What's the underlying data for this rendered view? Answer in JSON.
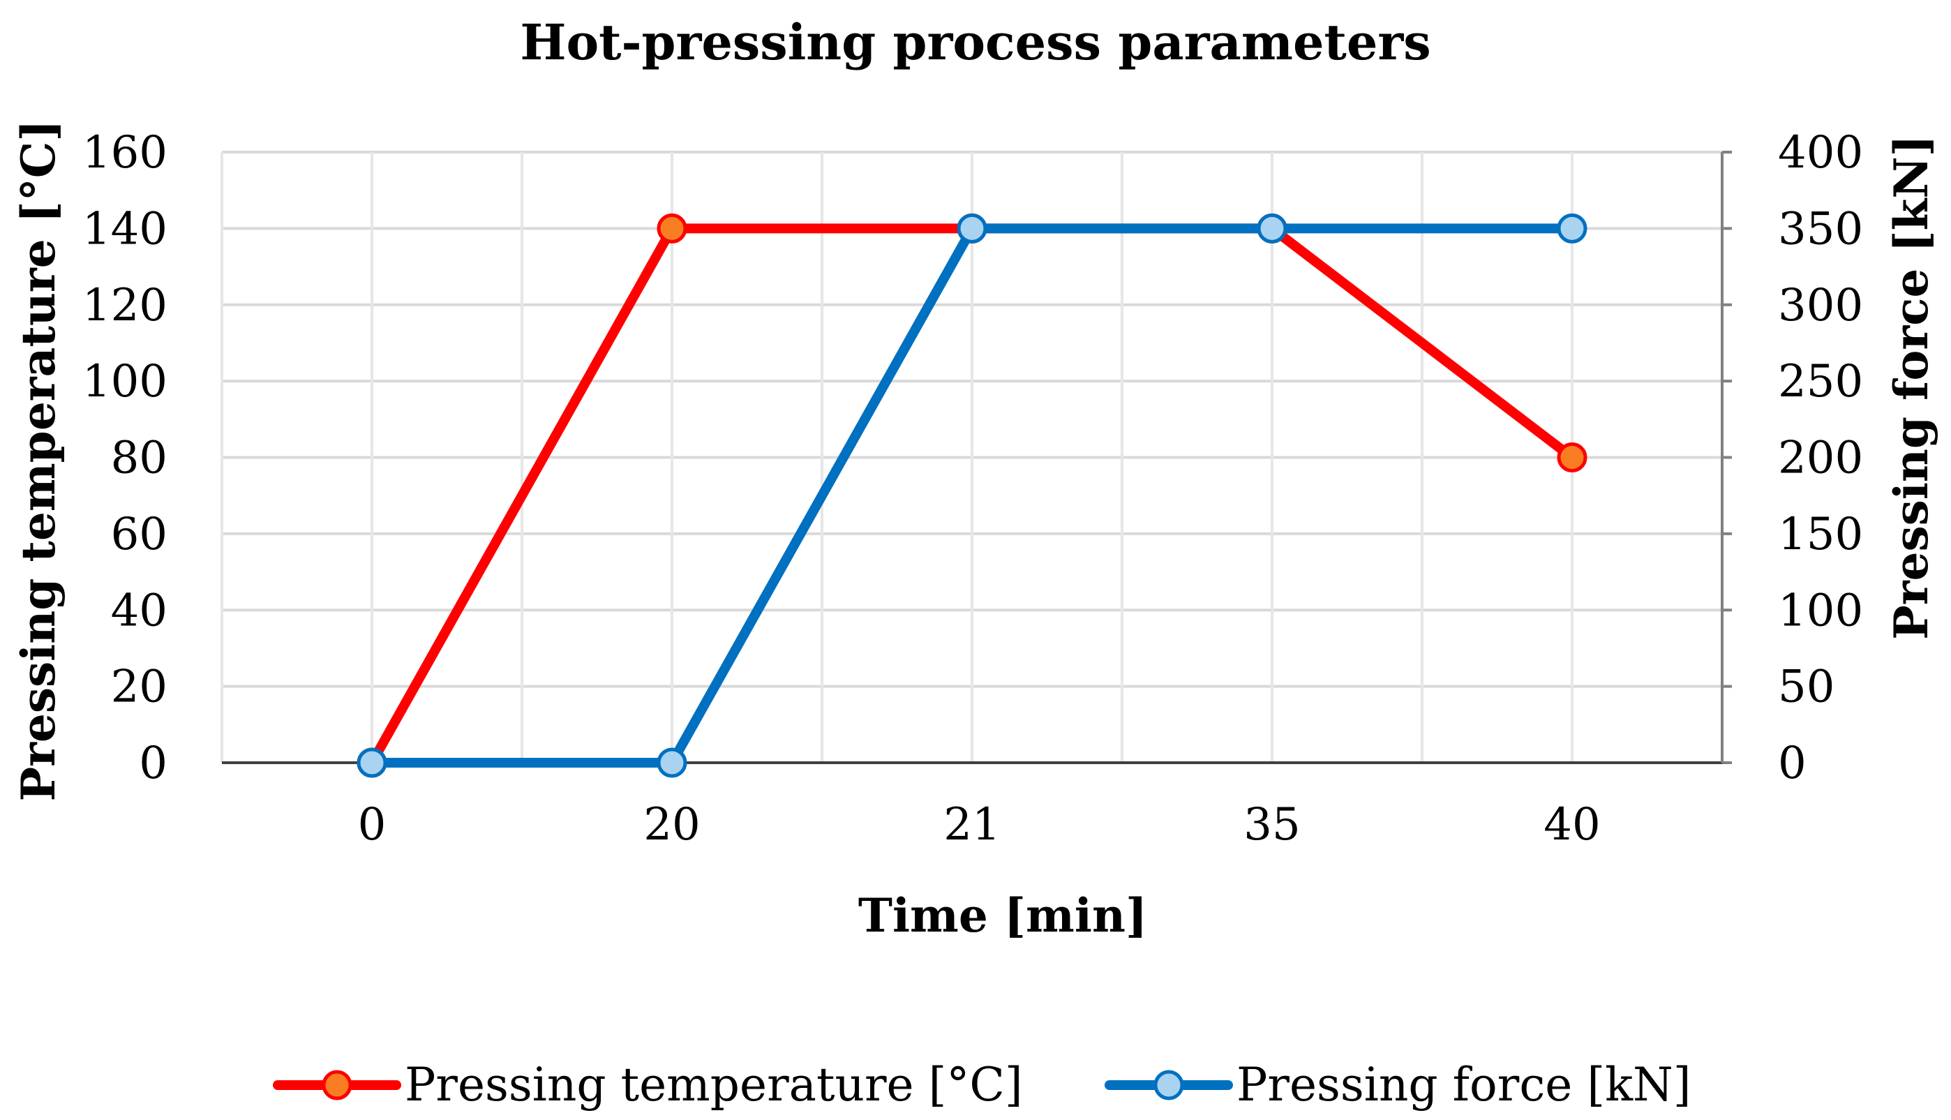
{
  "chart_data": {
    "type": "line",
    "title": "Hot-pressing process parameters",
    "xlabel": "Time [min]",
    "ylabel_left": "Pressing temperature [°C]",
    "ylabel_right": "Pressing force [kN]",
    "categories": [
      "0",
      "20",
      "21",
      "35",
      "40"
    ],
    "y_left_ticks": [
      0,
      20,
      40,
      60,
      80,
      100,
      120,
      140,
      160
    ],
    "y_right_ticks": [
      0,
      50,
      100,
      150,
      200,
      250,
      300,
      350,
      400
    ],
    "ylim_left": [
      0,
      160
    ],
    "ylim_right": [
      0,
      400
    ],
    "grid": true,
    "legend_position": "bottom",
    "series": [
      {
        "name": "Pressing temperature [°C]",
        "axis": "left",
        "values": [
          0,
          140,
          140,
          140,
          80
        ],
        "line_color": "#ff0000",
        "marker_fill": "#f97d22",
        "marker_stroke": "#ff0000"
      },
      {
        "name": "Pressing force [kN]",
        "axis": "right",
        "values": [
          0,
          0,
          350,
          350,
          350
        ],
        "line_color": "#0070c0",
        "marker_fill": "#a9d3f0",
        "marker_stroke": "#0070c0"
      }
    ]
  }
}
